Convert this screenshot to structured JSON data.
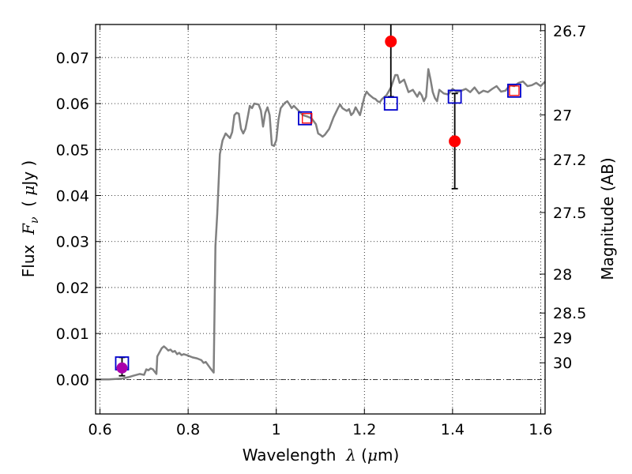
{
  "chart_data": {
    "type": "line",
    "xlabel_text": "Wavelength",
    "xlabel_symbol": "λ",
    "xlabel_unit_open": " (",
    "xlabel_unit_mu": "μ",
    "xlabel_unit_close": "m)",
    "ylabel_text": "Flux",
    "ylabel_symbol": "F",
    "ylabel_sub": "ν",
    "ylabel_unit_open": "  ( ",
    "ylabel_unit_mu": "μ",
    "ylabel_unit_close": "Jy )",
    "y2label": "Magnitude (AB)",
    "xlim": [
      0.59,
      1.61
    ],
    "ylim": [
      -0.0075,
      0.0772
    ],
    "grid": true,
    "x_ticks": [
      0.6,
      0.8,
      1.0,
      1.2,
      1.4,
      1.6
    ],
    "x_tick_labels": [
      "0.6",
      "0.8",
      "1",
      "1.2",
      "1.4",
      "1.6"
    ],
    "y_ticks": [
      0.0,
      0.01,
      0.02,
      0.03,
      0.04,
      0.05,
      0.06,
      0.07
    ],
    "y_tick_labels": [
      "0.00",
      "0.01",
      "0.02",
      "0.03",
      "0.04",
      "0.05",
      "0.06",
      "0.07"
    ],
    "mag_ticks": [
      26.7,
      27,
      27.2,
      27.5,
      28,
      28.5,
      29,
      30
    ],
    "mag_tick_labels": [
      "26.7",
      "27",
      "27.2",
      "27.5",
      "28",
      "28.5",
      "29",
      "30"
    ],
    "mag_zero_point": 23.9,
    "zero_line_style": "dash-dot",
    "colors": {
      "model": "#808080",
      "observed": "#ff0000",
      "model_phot_blue": "#0000cc",
      "model_phot_red": "#ff0000",
      "bbox_point": "#aa00aa",
      "errorbar": "#000000"
    },
    "series": [
      {
        "style": "gray-line",
        "points": [
          [
            0.59,
            0.0
          ],
          [
            0.62,
            0.0
          ],
          [
            0.65,
            0.0002
          ],
          [
            0.665,
            0.0005
          ],
          [
            0.675,
            0.0008
          ],
          [
            0.69,
            0.0012
          ],
          [
            0.7,
            0.001
          ],
          [
            0.705,
            0.0022
          ],
          [
            0.71,
            0.002
          ],
          [
            0.715,
            0.0024
          ],
          [
            0.72,
            0.0022
          ],
          [
            0.728,
            0.0012
          ],
          [
            0.73,
            0.005
          ],
          [
            0.74,
            0.0068
          ],
          [
            0.745,
            0.0072
          ],
          [
            0.75,
            0.0068
          ],
          [
            0.755,
            0.0063
          ],
          [
            0.76,
            0.0065
          ],
          [
            0.765,
            0.006
          ],
          [
            0.77,
            0.0062
          ],
          [
            0.775,
            0.0055
          ],
          [
            0.78,
            0.0058
          ],
          [
            0.785,
            0.0053
          ],
          [
            0.79,
            0.0055
          ],
          [
            0.8,
            0.0052
          ],
          [
            0.81,
            0.0048
          ],
          [
            0.82,
            0.0046
          ],
          [
            0.83,
            0.0042
          ],
          [
            0.835,
            0.0036
          ],
          [
            0.84,
            0.0038
          ],
          [
            0.85,
            0.0025
          ],
          [
            0.858,
            0.0015
          ],
          [
            0.862,
            0.029
          ],
          [
            0.866,
            0.036
          ],
          [
            0.872,
            0.049
          ],
          [
            0.878,
            0.052
          ],
          [
            0.885,
            0.0535
          ],
          [
            0.89,
            0.053
          ],
          [
            0.895,
            0.0525
          ],
          [
            0.9,
            0.0538
          ],
          [
            0.905,
            0.0575
          ],
          [
            0.91,
            0.058
          ],
          [
            0.915,
            0.0578
          ],
          [
            0.92,
            0.0545
          ],
          [
            0.925,
            0.0535
          ],
          [
            0.93,
            0.0545
          ],
          [
            0.935,
            0.057
          ],
          [
            0.94,
            0.0595
          ],
          [
            0.945,
            0.059
          ],
          [
            0.95,
            0.06
          ],
          [
            0.96,
            0.0598
          ],
          [
            0.965,
            0.0585
          ],
          [
            0.97,
            0.055
          ],
          [
            0.975,
            0.058
          ],
          [
            0.98,
            0.0592
          ],
          [
            0.985,
            0.0575
          ],
          [
            0.99,
            0.051
          ],
          [
            0.995,
            0.0508
          ],
          [
            1.0,
            0.052
          ],
          [
            1.005,
            0.0565
          ],
          [
            1.01,
            0.059
          ],
          [
            1.02,
            0.0602
          ],
          [
            1.025,
            0.0605
          ],
          [
            1.03,
            0.0598
          ],
          [
            1.035,
            0.059
          ],
          [
            1.04,
            0.0595
          ],
          [
            1.05,
            0.0585
          ],
          [
            1.06,
            0.0575
          ],
          [
            1.07,
            0.0572
          ],
          [
            1.08,
            0.0568
          ],
          [
            1.09,
            0.0555
          ],
          [
            1.095,
            0.0535
          ],
          [
            1.1,
            0.0532
          ],
          [
            1.105,
            0.0528
          ],
          [
            1.11,
            0.0532
          ],
          [
            1.12,
            0.0545
          ],
          [
            1.13,
            0.057
          ],
          [
            1.14,
            0.059
          ],
          [
            1.145,
            0.0598
          ],
          [
            1.15,
            0.059
          ],
          [
            1.16,
            0.0584
          ],
          [
            1.165,
            0.0588
          ],
          [
            1.17,
            0.0575
          ],
          [
            1.175,
            0.058
          ],
          [
            1.18,
            0.0592
          ],
          [
            1.19,
            0.0575
          ],
          [
            1.2,
            0.0615
          ],
          [
            1.205,
            0.0626
          ],
          [
            1.21,
            0.062
          ],
          [
            1.22,
            0.0612
          ],
          [
            1.225,
            0.061
          ],
          [
            1.23,
            0.0605
          ],
          [
            1.235,
            0.0603
          ],
          [
            1.24,
            0.061
          ],
          [
            1.25,
            0.0618
          ],
          [
            1.26,
            0.0635
          ],
          [
            1.265,
            0.0648
          ],
          [
            1.27,
            0.0662
          ],
          [
            1.275,
            0.0662
          ],
          [
            1.28,
            0.0645
          ],
          [
            1.29,
            0.0652
          ],
          [
            1.3,
            0.0625
          ],
          [
            1.31,
            0.063
          ],
          [
            1.32,
            0.0615
          ],
          [
            1.325,
            0.0625
          ],
          [
            1.33,
            0.0618
          ],
          [
            1.335,
            0.0605
          ],
          [
            1.34,
            0.0615
          ],
          [
            1.345,
            0.0675
          ],
          [
            1.35,
            0.0652
          ],
          [
            1.355,
            0.0625
          ],
          [
            1.36,
            0.0612
          ],
          [
            1.365,
            0.0605
          ],
          [
            1.37,
            0.063
          ],
          [
            1.38,
            0.0622
          ],
          [
            1.39,
            0.062
          ],
          [
            1.4,
            0.0632
          ],
          [
            1.41,
            0.0625
          ],
          [
            1.42,
            0.0628
          ],
          [
            1.43,
            0.0632
          ],
          [
            1.44,
            0.0625
          ],
          [
            1.45,
            0.0635
          ],
          [
            1.46,
            0.0622
          ],
          [
            1.47,
            0.0628
          ],
          [
            1.48,
            0.0625
          ],
          [
            1.49,
            0.0632
          ],
          [
            1.5,
            0.0638
          ],
          [
            1.51,
            0.0626
          ],
          [
            1.52,
            0.0628
          ],
          [
            1.53,
            0.064
          ],
          [
            1.54,
            0.0638
          ],
          [
            1.55,
            0.0645
          ],
          [
            1.56,
            0.0648
          ],
          [
            1.57,
            0.0638
          ],
          [
            1.58,
            0.064
          ],
          [
            1.59,
            0.0645
          ],
          [
            1.6,
            0.0638
          ],
          [
            1.61,
            0.0648
          ]
        ]
      },
      {
        "style": "red-circles-with-errors",
        "points": [
          {
            "x": 1.26,
            "y": 0.0735,
            "ylo": 0.0615,
            "yhi": 0.0772
          },
          {
            "x": 1.405,
            "y": 0.0518,
            "ylo": 0.0415,
            "yhi": 0.0622
          }
        ]
      },
      {
        "style": "purple-circle-with-errors",
        "points": [
          {
            "x": 0.65,
            "y": 0.0025,
            "ylo": 0.0008,
            "yhi": 0.0048
          }
        ]
      },
      {
        "style": "blue-squares",
        "points": [
          {
            "x": 0.65,
            "y": 0.0035
          },
          {
            "x": 1.065,
            "y": 0.0568
          },
          {
            "x": 1.26,
            "y": 0.06
          },
          {
            "x": 1.405,
            "y": 0.0615
          },
          {
            "x": 1.54,
            "y": 0.0628
          }
        ]
      },
      {
        "style": "red-squares",
        "points": [
          {
            "x": 1.07,
            "y": 0.0568
          },
          {
            "x": 1.54,
            "y": 0.0628
          }
        ]
      }
    ]
  }
}
